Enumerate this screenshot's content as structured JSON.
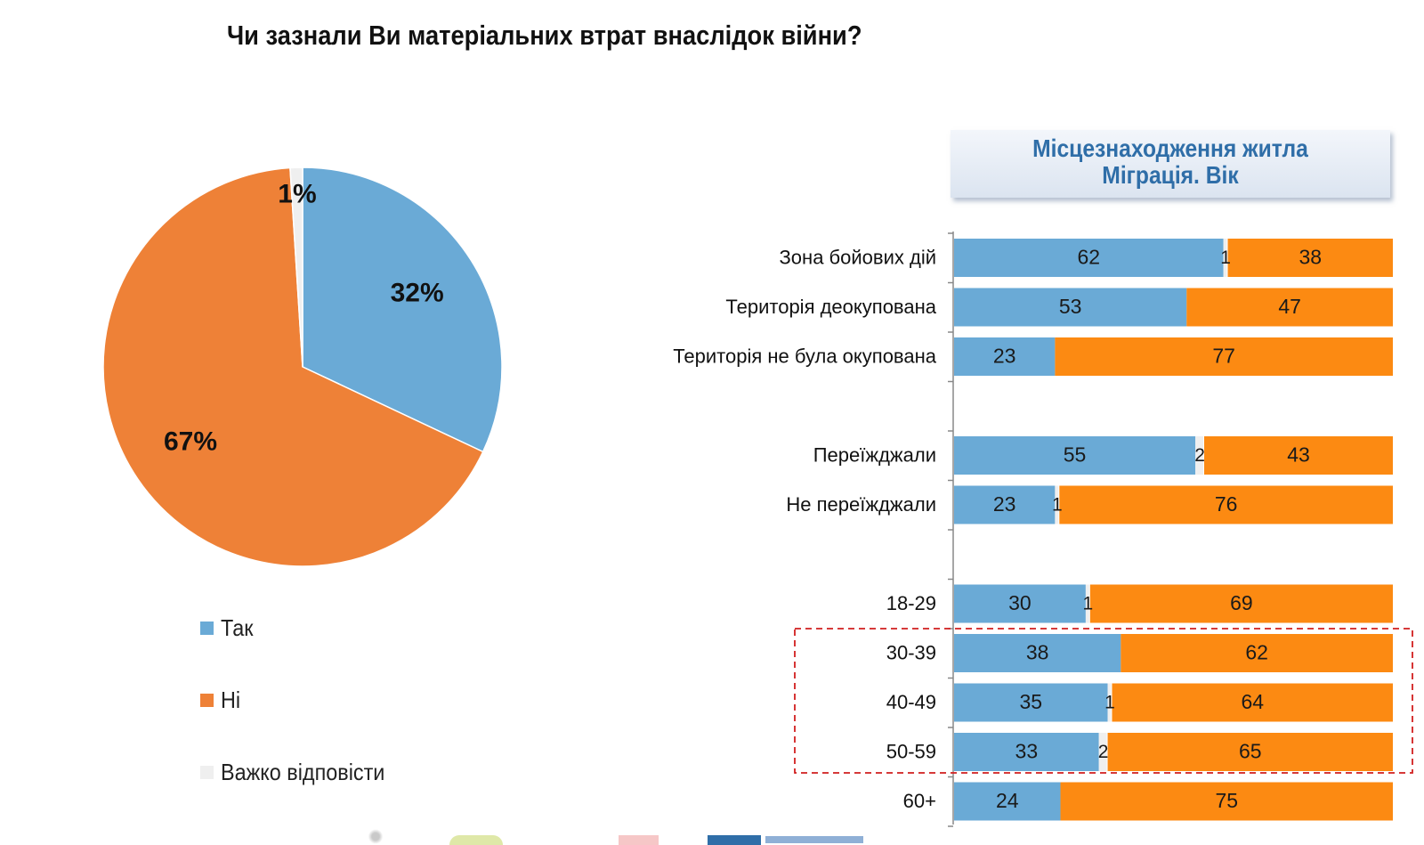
{
  "colors": {
    "yes": "#6aaad6",
    "no_pie": "#ee8137",
    "no_bar": "#fc8a12",
    "hard": "#efefef",
    "header_text": "#2f6ea8",
    "highlight": "#d11f1f"
  },
  "title": "Чи зазнали Ви матеріальних втрат внаслідок війни?",
  "segment_header": {
    "line1": "Місцезнаходження житла",
    "line2": "Міграція. Вік"
  },
  "legend": [
    {
      "label": "Так",
      "color": "#6aaad6"
    },
    {
      "label": "Ні",
      "color": "#ee8137"
    },
    {
      "label": "Важко відповісти",
      "color": "#efefef"
    }
  ],
  "chart_data": [
    {
      "type": "pie",
      "title": "Чи зазнали Ви матеріальних втрат внаслідок війни?",
      "slices": [
        {
          "name": "Так",
          "value": 32,
          "label": "32%"
        },
        {
          "name": "Ні",
          "value": 67,
          "label": "67%"
        },
        {
          "name": "Важко відповісти",
          "value": 1,
          "label": "1%"
        }
      ]
    },
    {
      "type": "bar",
      "orientation": "horizontal",
      "stacked": true,
      "title": "Місцезнаходження житла Міграція. Вік",
      "groups": [
        {
          "categories": [
            {
              "label": "Зона бойових дій",
              "yes": 62,
              "hard": 1,
              "no": 38
            },
            {
              "label": "Територія деокупована",
              "yes": 53,
              "hard": 0,
              "no": 47
            },
            {
              "label": "Територія не була окупована",
              "yes": 23,
              "hard": 0,
              "no": 77
            }
          ]
        },
        {
          "categories": [
            {
              "label": "Переїжджали",
              "yes": 55,
              "hard": 2,
              "no": 43
            },
            {
              "label": "Не переїжджали",
              "yes": 23,
              "hard": 1,
              "no": 76
            }
          ]
        },
        {
          "categories": [
            {
              "label": "18-29",
              "yes": 30,
              "hard": 1,
              "no": 69
            },
            {
              "label": "30-39",
              "yes": 38,
              "hard": 0,
              "no": 62
            },
            {
              "label": "40-49",
              "yes": 35,
              "hard": 1,
              "no": 64
            },
            {
              "label": "50-59",
              "yes": 33,
              "hard": 2,
              "no": 65
            },
            {
              "label": "60+",
              "yes": 24,
              "hard": 0,
              "no": 75
            }
          ]
        }
      ],
      "highlighted_categories": [
        "30-39",
        "40-49",
        "50-59"
      ]
    }
  ]
}
